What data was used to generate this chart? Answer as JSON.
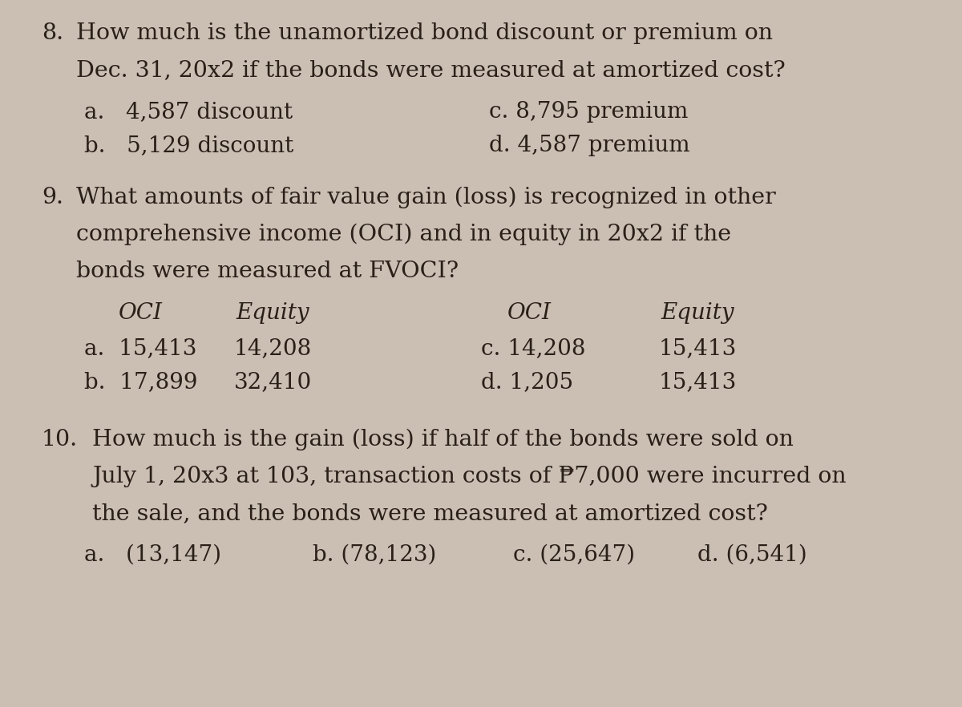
{
  "background_color": "#cbbfb4",
  "text_color": "#2a2018",
  "figsize": [
    12.0,
    8.82
  ],
  "dpi": 100,
  "q8_number": "8.",
  "q8_line1": "How much is the unamortized bond discount or premium on",
  "q8_line2": "Dec. 31, 20x2 if the bonds were measured at amortized cost?",
  "q8_a": "a.   4,587 discount",
  "q8_b": "b.   5,129 discount",
  "q8_c": "c. 8,795 premium",
  "q8_d": "d. 4,587 premium",
  "q9_number": "9.",
  "q9_line1": "What amounts of fair value gain (loss) is recognized in other",
  "q9_line2": "comprehensive income (OCI) and in equity in 20x2 if the",
  "q9_line3": "bonds were measured at FVOCI?",
  "q9_h_oci1": "OCI",
  "q9_h_eq1": "Equity",
  "q9_h_oci2": "OCI",
  "q9_h_eq2": "Equity",
  "q9_a_oci": "a.  15,413",
  "q9_a_eq": "14,208",
  "q9_b_oci": "b.  17,899",
  "q9_b_eq": "32,410",
  "q9_c_oci": "c. 14,208",
  "q9_c_eq": "15,413",
  "q9_d_oci": "d. 1,205",
  "q9_d_eq": "15,413",
  "q10_number": "10.",
  "q10_line1": "How much is the gain (loss) if half of the bonds were sold on",
  "q10_line2": "July 1, 20x3 at 103, transaction costs of ₱7,000 were incurred on",
  "q10_line3": "the sale, and the bonds were measured at amortized cost?",
  "q10_a": "a.   (13,147)",
  "q10_b": "b. (78,123)",
  "q10_c": "c. (25,647)",
  "q10_d": "d. (6,541)",
  "main_fontsize": 20.5,
  "choice_fontsize": 20.0,
  "header_fontsize": 20.0
}
